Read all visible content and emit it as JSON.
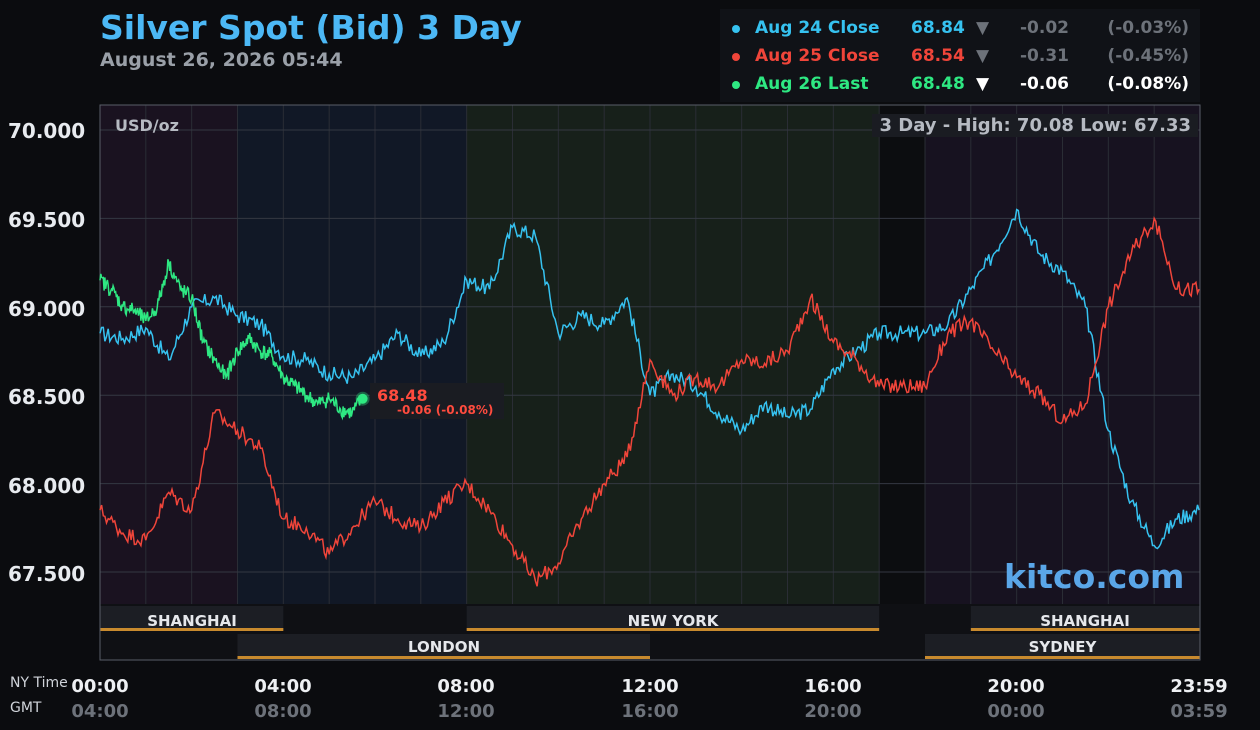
{
  "header": {
    "title": "Silver Spot (Bid) 3 Day",
    "subtitle": "August 26, 2026 05:44"
  },
  "legend": [
    {
      "label": "Aug 24 Close",
      "value": "68.84",
      "arrow": "▼",
      "change": "-0.02",
      "pct": "(-0.03%)",
      "color": "#36c2f0",
      "active": false
    },
    {
      "label": "Aug 25 Close",
      "value": "68.54",
      "arrow": "▼",
      "change": "-0.31",
      "pct": "(-0.45%)",
      "color": "#f0453a",
      "active": false
    },
    {
      "label": "Aug 26 Last",
      "value": "68.48",
      "arrow": "▼",
      "change": "-0.06",
      "pct": "(-0.08%)",
      "color": "#2ee882",
      "active": true
    }
  ],
  "unit_label": "USD/oz",
  "high_low": "3 Day - High: 70.08  Low: 67.33",
  "last_label": {
    "value": "68.48",
    "change": "-0.06 (-0.08%)"
  },
  "watermark": "kitco.com",
  "axis": {
    "ny_label": "NY Time",
    "gmt_label": "GMT",
    "ny_ticks": [
      "00:00",
      "04:00",
      "08:00",
      "12:00",
      "16:00",
      "20:00",
      "23:59"
    ],
    "gmt_ticks": [
      "04:00",
      "08:00",
      "12:00",
      "16:00",
      "20:00",
      "00:00",
      "03:59"
    ],
    "y_ticks": [
      "70.000",
      "69.500",
      "69.000",
      "68.500",
      "68.000",
      "67.500"
    ]
  },
  "markets": [
    {
      "name": "SHANGHAI",
      "start": 0,
      "end": 4
    },
    {
      "name": "LONDON",
      "start": 3,
      "end": 12
    },
    {
      "name": "NEW YORK",
      "start": 8,
      "end": 17
    },
    {
      "name": "SHANGHAI",
      "start": 19,
      "end": 24
    },
    {
      "name": "SYDNEY",
      "start": 18,
      "end": 24
    }
  ],
  "colors": {
    "aug24": "#36c2f0",
    "aug25": "#f0453a",
    "aug26": "#2ee882",
    "session_bar": "#c88a2e"
  },
  "chart_data": {
    "type": "line",
    "title": "Silver Spot (Bid) 3 Day",
    "ylabel": "USD/oz",
    "xlabel": "NY Time",
    "x_unit": "hours",
    "xlim": [
      0,
      24
    ],
    "ylim": [
      67.3,
      70.1
    ],
    "high": 70.08,
    "low": 67.33,
    "series": [
      {
        "name": "Aug 24 Close",
        "x": [
          0,
          0.5,
          1,
          1.5,
          2,
          2.5,
          3,
          3.5,
          4,
          4.5,
          5,
          5.5,
          6,
          6.5,
          7,
          7.5,
          8,
          8.5,
          9,
          9.5,
          10,
          10.5,
          11,
          11.5,
          12,
          12.5,
          13,
          13.5,
          14,
          14.5,
          15,
          15.5,
          16,
          16.5,
          17,
          17.5,
          18,
          18.5,
          19,
          19.5,
          20,
          20.5,
          21,
          21.5,
          22,
          22.5,
          23,
          23.5,
          23.98
        ],
        "values": [
          68.85,
          68.82,
          68.88,
          68.7,
          69.0,
          69.05,
          68.95,
          68.9,
          68.72,
          68.7,
          68.62,
          68.6,
          68.7,
          68.85,
          68.72,
          68.8,
          69.15,
          69.1,
          69.45,
          69.4,
          68.85,
          68.95,
          68.9,
          69.05,
          68.5,
          68.62,
          68.55,
          68.4,
          68.3,
          68.45,
          68.38,
          68.42,
          68.65,
          68.75,
          68.85,
          68.85,
          68.85,
          68.9,
          69.1,
          69.3,
          69.55,
          69.3,
          69.2,
          69.0,
          68.3,
          67.9,
          67.65,
          67.8,
          67.85
        ]
      },
      {
        "name": "Aug 25 Close",
        "x": [
          0,
          0.5,
          1,
          1.5,
          2,
          2.5,
          3,
          3.5,
          4,
          4.5,
          5,
          5.5,
          6,
          6.5,
          7,
          7.5,
          8,
          8.5,
          9,
          9.5,
          10,
          10.5,
          11,
          11.5,
          12,
          12.5,
          13,
          13.5,
          14,
          14.5,
          15,
          15.5,
          16,
          16.5,
          17,
          17.5,
          18,
          18.5,
          19,
          19.5,
          20,
          20.5,
          21,
          21.5,
          22,
          22.5,
          23,
          23.5,
          23.98
        ],
        "values": [
          67.85,
          67.72,
          67.68,
          67.95,
          67.85,
          68.4,
          68.3,
          68.2,
          67.8,
          67.75,
          67.6,
          67.75,
          67.9,
          67.8,
          67.75,
          67.9,
          68.0,
          67.85,
          67.65,
          67.45,
          67.55,
          67.8,
          68.0,
          68.15,
          68.7,
          68.5,
          68.6,
          68.55,
          68.7,
          68.68,
          68.75,
          69.05,
          68.8,
          68.7,
          68.55,
          68.55,
          68.55,
          68.85,
          68.92,
          68.75,
          68.6,
          68.5,
          68.35,
          68.45,
          69.0,
          69.3,
          69.5,
          69.1,
          69.1
        ]
      },
      {
        "name": "Aug 26 Last",
        "x": [
          0,
          0.25,
          0.5,
          0.75,
          1,
          1.25,
          1.5,
          1.75,
          2,
          2.25,
          2.5,
          2.75,
          3,
          3.25,
          3.5,
          3.75,
          4,
          4.25,
          4.5,
          4.75,
          5,
          5.25,
          5.5,
          5.73
        ],
        "values": [
          69.15,
          69.1,
          69.0,
          68.98,
          68.92,
          69.0,
          69.25,
          69.1,
          69.05,
          68.8,
          68.7,
          68.6,
          68.75,
          68.82,
          68.75,
          68.72,
          68.6,
          68.55,
          68.5,
          68.45,
          68.48,
          68.42,
          68.4,
          68.48
        ]
      }
    ]
  }
}
